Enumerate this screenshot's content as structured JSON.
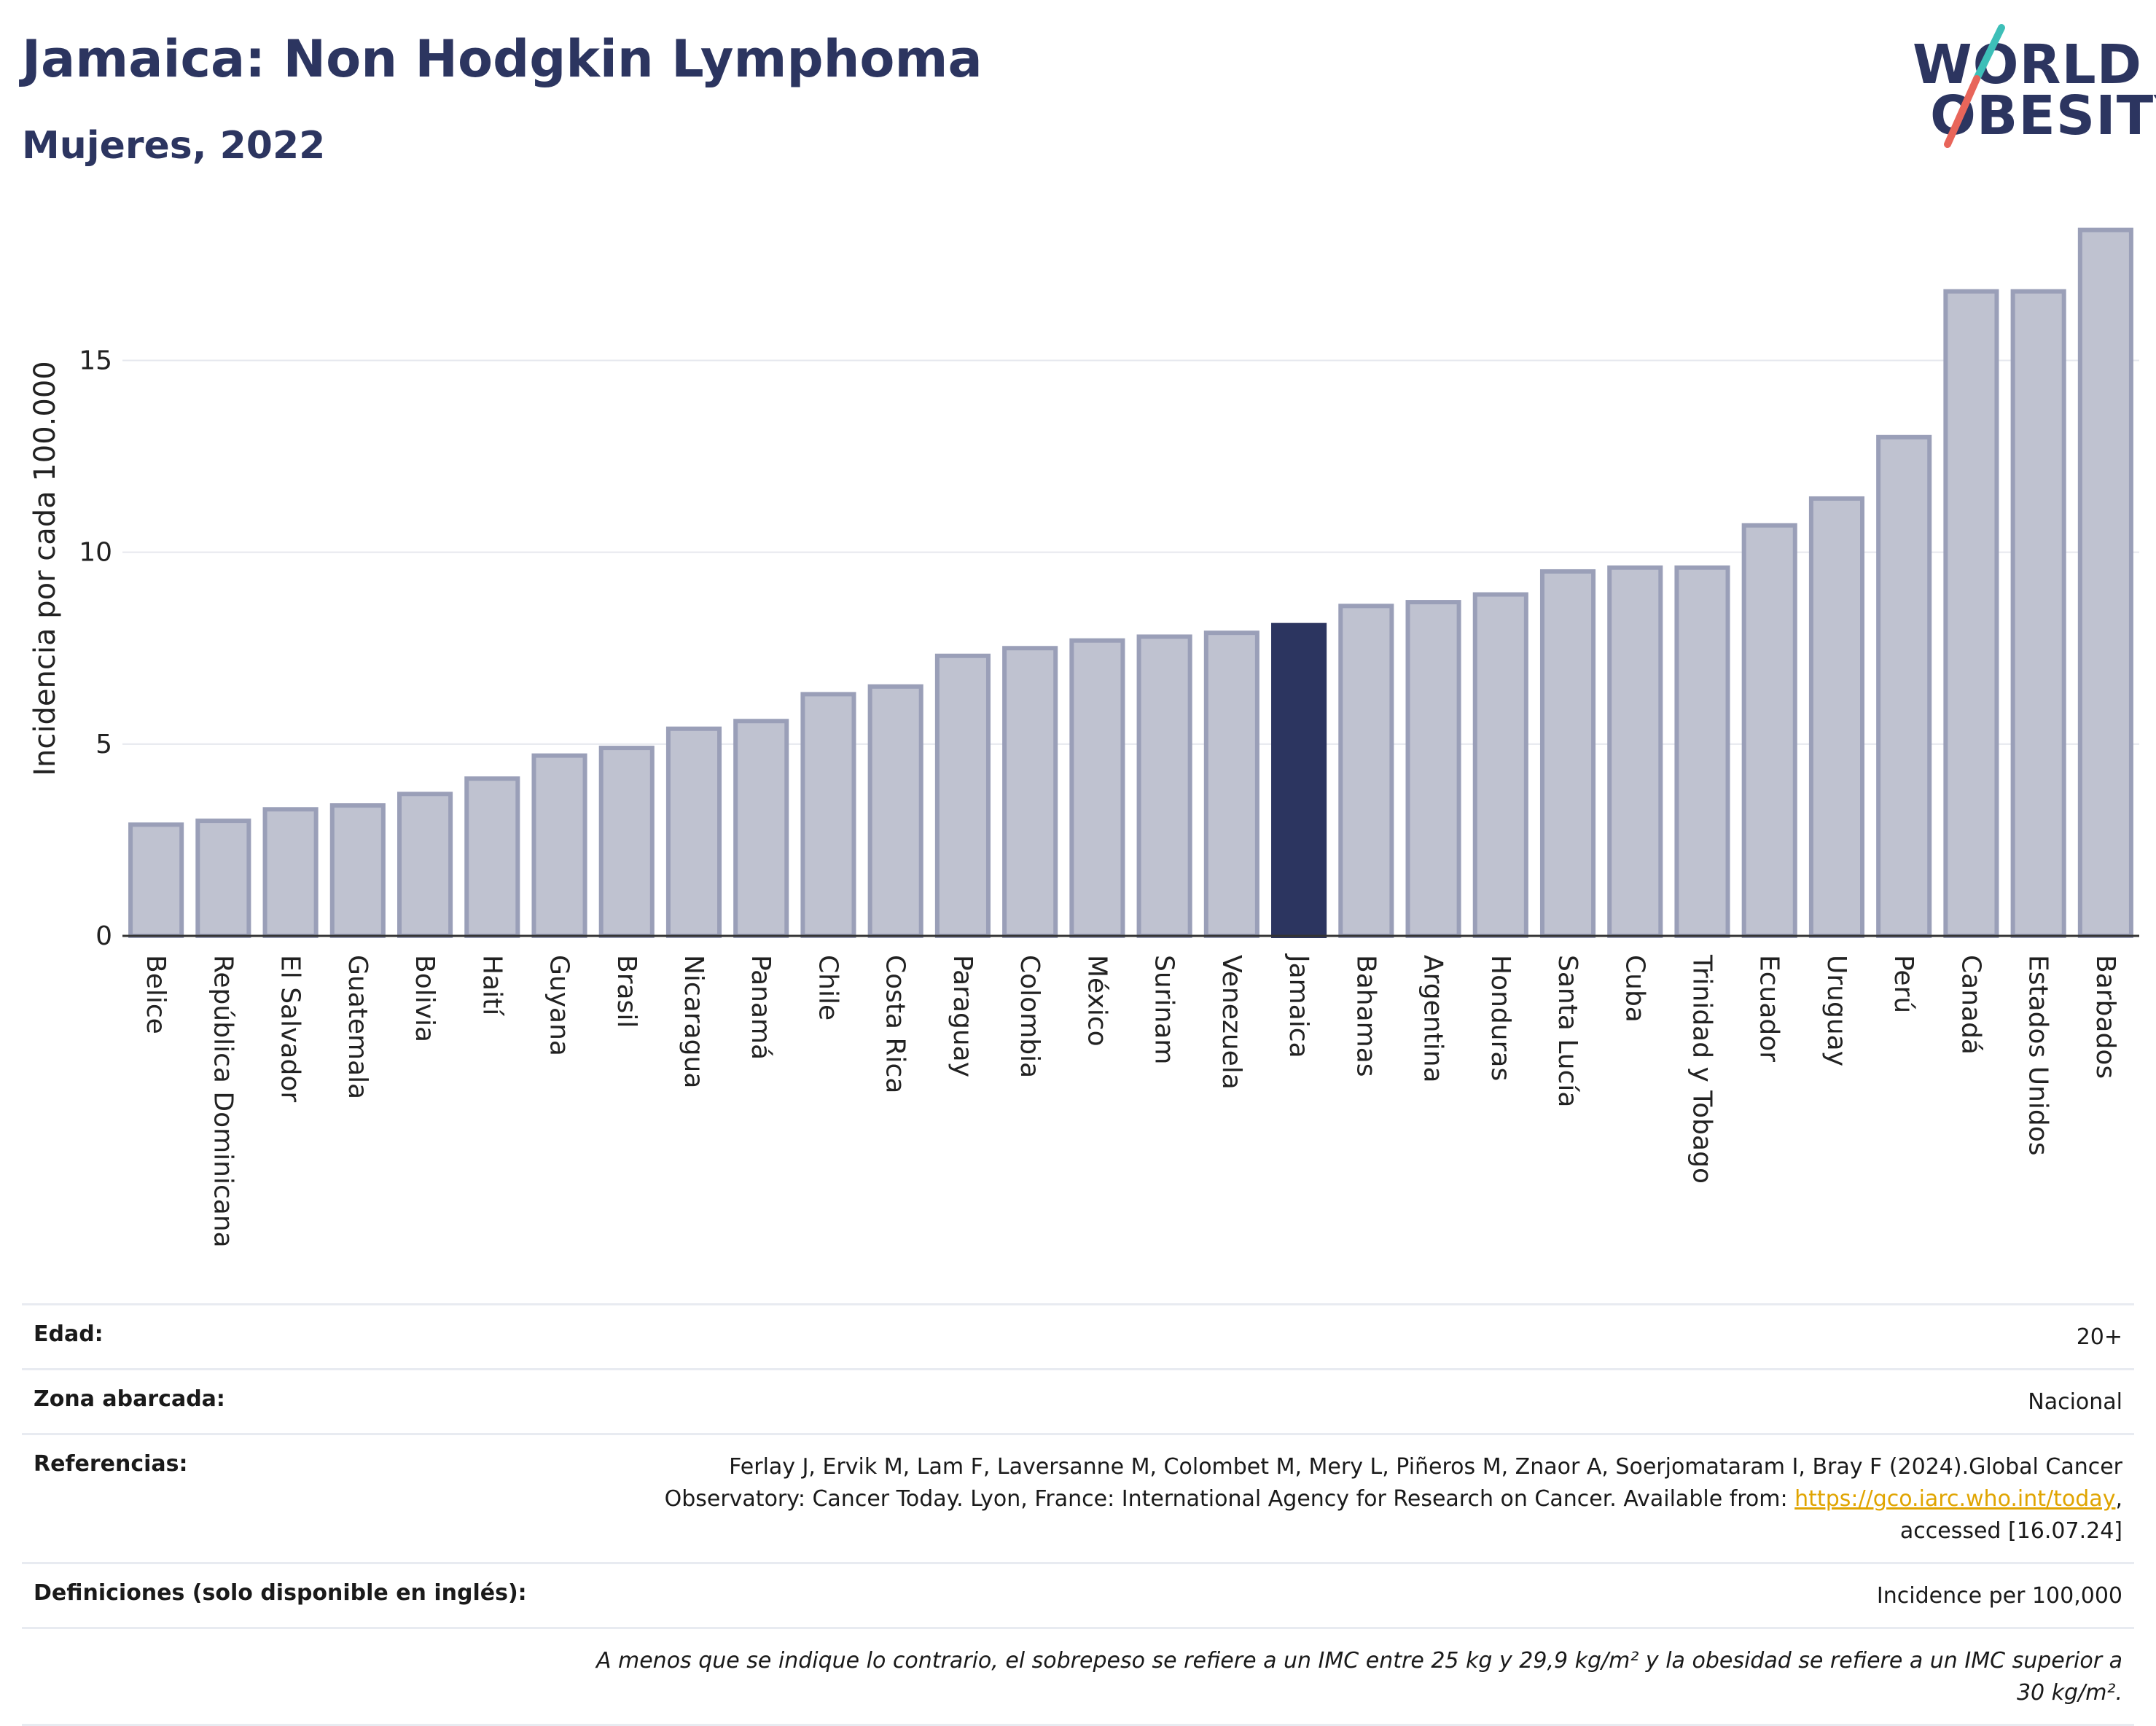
{
  "header": {
    "title": "Jamaica: Non Hodgkin Lymphoma",
    "subtitle": "Mujeres, 2022"
  },
  "logo": {
    "line1": "WORLD",
    "line2": "OBESITY",
    "colors": {
      "text": "#2c3560",
      "slash_top": "#3dbfb8",
      "slash_bottom": "#e8655a"
    }
  },
  "chart_data": {
    "type": "bar",
    "title": "Jamaica: Non Hodgkin Lymphoma",
    "subtitle": "Mujeres, 2022",
    "ylabel": "Incidencia por cada 100.000",
    "xlabel": "",
    "ylim": [
      0,
      18.6
    ],
    "yticks": [
      0,
      5,
      10,
      15
    ],
    "grid": true,
    "highlight": "Jamaica",
    "colors": {
      "bar": "#bfc2d0",
      "bar_border": "#9a9fb8",
      "highlight": "#2c3560"
    },
    "categories": [
      "Belice",
      "República Dominicana",
      "El Salvador",
      "Guatemala",
      "Bolivia",
      "Haití",
      "Guyana",
      "Brasil",
      "Nicaragua",
      "Panamá",
      "Chile",
      "Costa Rica",
      "Paraguay",
      "Colombia",
      "México",
      "Surinam",
      "Venezuela",
      "Jamaica",
      "Bahamas",
      "Argentina",
      "Honduras",
      "Santa Lucía",
      "Cuba",
      "Trinidad y Tobago",
      "Ecuador",
      "Uruguay",
      "Perú",
      "Canadá",
      "Estados Unidos",
      "Barbados"
    ],
    "values": [
      2.9,
      3.0,
      3.3,
      3.4,
      3.7,
      4.1,
      4.7,
      4.9,
      5.4,
      5.6,
      6.3,
      6.5,
      7.3,
      7.5,
      7.7,
      7.8,
      7.9,
      8.1,
      8.6,
      8.7,
      8.9,
      9.5,
      9.6,
      9.6,
      10.7,
      11.4,
      13.0,
      16.8,
      16.8,
      18.4
    ]
  },
  "info": {
    "age_label": "Edad:",
    "age_value": "20+",
    "area_label": "Zona abarcada:",
    "area_value": "Nacional",
    "refs_label": "Referencias:",
    "refs_text": "Ferlay J, Ervik M, Lam F, Laversanne M, Colombet M, Mery L, Piñeros M, Znaor A, Soerjomataram I, Bray F (2024).Global Cancer Observatory: Cancer Today. Lyon, France: International Agency for Research on Cancer. Available from:",
    "refs_link": "https://gco.iarc.who.int/today",
    "refs_tail": ", accessed [16.07.24]",
    "defs_label": "Definiciones (solo disponible en inglés):",
    "defs_value": "Incidence per 100,000",
    "footnote": "A menos que se indique lo contrario, el sobrepeso se refiere a un IMC entre 25 kg y 29,9 kg/m² y la obesidad se refiere a un IMC superior a 30 kg/m²."
  }
}
